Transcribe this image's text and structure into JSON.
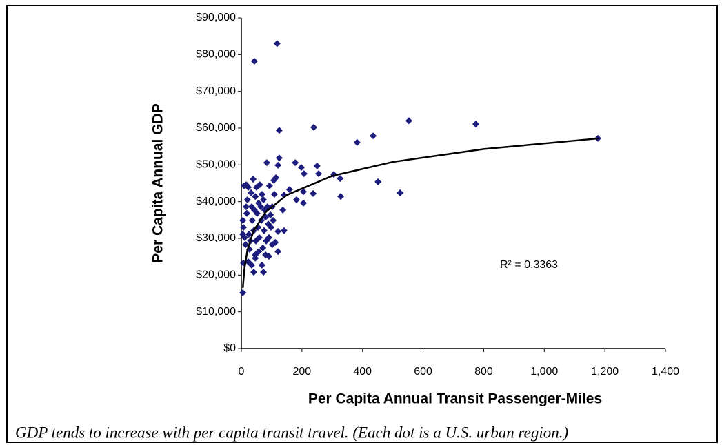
{
  "chart_data": {
    "type": "scatter",
    "xlabel": "Per Capita Annual Transit Passenger-Miles",
    "ylabel": "Per Capita Annual GDP",
    "annotation": "R² = 0.3363",
    "caption": "GDP tends to increase with per capita transit travel. (Each dot is a U.S. urban region.)",
    "color": "#1c1c7c",
    "x": [
      5,
      43,
      118,
      125,
      239,
      382,
      435,
      553,
      774,
      1177,
      451,
      524,
      328,
      326,
      305,
      250,
      255,
      237,
      178,
      198,
      207,
      205,
      205,
      182,
      159,
      141,
      125,
      121,
      114,
      107,
      84,
      137,
      141,
      121,
      121,
      91,
      73,
      68,
      46,
      23,
      5,
      7,
      11,
      14,
      16,
      18,
      20,
      23,
      25,
      27,
      30,
      32,
      34,
      36,
      39,
      41,
      43,
      46,
      48,
      50,
      52,
      55,
      57,
      59,
      61,
      64,
      66,
      68,
      71,
      73,
      75,
      77,
      80,
      82,
      86,
      89,
      91,
      96,
      98,
      102,
      105,
      109,
      112,
      93,
      16,
      9,
      5,
      7,
      34,
      46,
      57,
      80,
      102,
      41
    ],
    "values": [
      15200,
      78200,
      83000,
      59400,
      60200,
      56100,
      57900,
      62000,
      61100,
      57200,
      45400,
      42400,
      41400,
      46300,
      47400,
      49700,
      47600,
      42200,
      50600,
      49300,
      47600,
      42700,
      39600,
      40500,
      43300,
      41800,
      51900,
      49900,
      46500,
      45800,
      50600,
      37700,
      32100,
      31900,
      26400,
      25100,
      20800,
      22700,
      25500,
      23600,
      34900,
      33000,
      30200,
      28300,
      38600,
      36800,
      40500,
      43900,
      31100,
      27000,
      29300,
      42400,
      38600,
      34900,
      46100,
      32100,
      37700,
      41400,
      29300,
      43900,
      36800,
      33000,
      39600,
      30200,
      44600,
      38600,
      34900,
      42000,
      27400,
      40500,
      32100,
      37700,
      35800,
      29300,
      38600,
      33900,
      30200,
      36400,
      33000,
      38600,
      34900,
      42000,
      28900,
      44300,
      44600,
      44300,
      31100,
      23300,
      22700,
      24600,
      26400,
      25500,
      28300,
      20800
    ],
    "trendline": {
      "color": "#000000",
      "x": [
        5,
        10,
        20,
        40,
        80,
        150,
        300,
        500,
        800,
        1180
      ],
      "values": [
        16500,
        21650,
        26800,
        32000,
        37150,
        41800,
        47000,
        50800,
        54300,
        57200
      ]
    },
    "xlim": [
      0,
      1400
    ],
    "xticks": [
      0,
      200,
      400,
      600,
      800,
      {
        "value": 1000,
        "label": "1,000"
      },
      {
        "value": 1200,
        "label": "1,200"
      },
      {
        "value": 1400,
        "label": "1,400"
      }
    ],
    "ylim": [
      0,
      90000
    ],
    "yticks": [
      {
        "value": 0,
        "label": "$0"
      },
      {
        "value": 10000,
        "label": "$10,000"
      },
      {
        "value": 20000,
        "label": "$20,000"
      },
      {
        "value": 30000,
        "label": "$30,000"
      },
      {
        "value": 40000,
        "label": "$40,000"
      },
      {
        "value": 50000,
        "label": "$50,000"
      },
      {
        "value": 60000,
        "label": "$60,000"
      },
      {
        "value": 70000,
        "label": "$70,000"
      },
      {
        "value": 80000,
        "label": "$80,000"
      },
      {
        "value": 90000,
        "label": "$90,000"
      }
    ],
    "grid": false
  }
}
